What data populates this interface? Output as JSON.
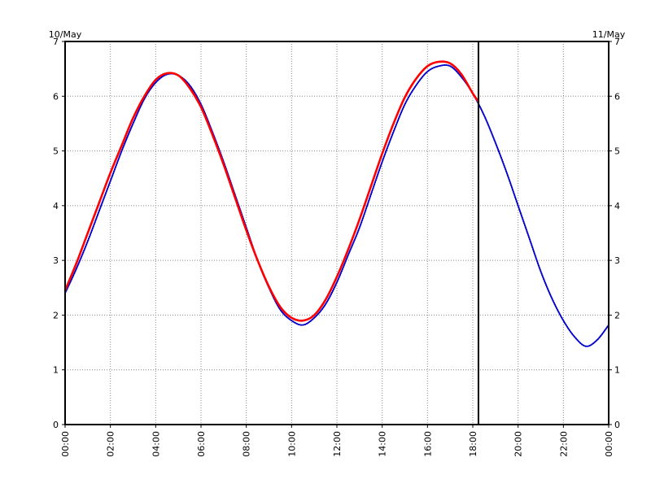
{
  "chart_data": {
    "type": "line",
    "date_labels": {
      "left": "10/May",
      "right": "11/May"
    },
    "x_ticks": [
      "00:00",
      "02:00",
      "04:00",
      "06:00",
      "08:00",
      "10:00",
      "12:00",
      "14:00",
      "16:00",
      "18:00",
      "20:00",
      "22:00",
      "00:00"
    ],
    "x_range_hours": [
      0,
      24
    ],
    "y_ticks": [
      "0",
      "1",
      "2",
      "3",
      "4",
      "5",
      "6",
      "7"
    ],
    "ylim": [
      0,
      7
    ],
    "grid": true,
    "grid_style": "dotted",
    "now_marker_hour": 18.25,
    "series": [
      {
        "style": "dotted",
        "color": "#0000cc",
        "x": [
          0,
          0.5,
          1,
          1.5,
          2,
          2.5,
          3,
          3.5,
          4,
          4.5,
          5,
          5.5,
          6,
          6.5,
          7,
          7.5,
          8,
          8.5,
          9,
          9.5,
          10,
          10.5,
          11,
          11.5,
          12,
          12.5,
          13,
          13.5,
          14,
          14.5,
          15,
          15.5,
          16,
          16.5,
          17,
          17.5,
          18,
          18.5,
          19,
          19.5,
          20,
          20.5,
          21,
          21.5,
          22,
          22.5,
          23,
          23.5,
          24
        ],
        "y": [
          2.4,
          2.85,
          3.35,
          3.9,
          4.45,
          5.0,
          5.5,
          5.95,
          6.25,
          6.4,
          6.38,
          6.2,
          5.85,
          5.35,
          4.8,
          4.2,
          3.6,
          3.0,
          2.5,
          2.1,
          1.9,
          1.82,
          1.95,
          2.2,
          2.6,
          3.1,
          3.6,
          4.2,
          4.8,
          5.35,
          5.85,
          6.2,
          6.45,
          6.55,
          6.55,
          6.35,
          6.05,
          5.65,
          5.15,
          4.6,
          4.0,
          3.4,
          2.8,
          2.3,
          1.9,
          1.6,
          1.43,
          1.55,
          1.82
        ]
      },
      {
        "style": "solid",
        "color": "#ff0000",
        "x": [
          0,
          0.5,
          1,
          1.5,
          2,
          2.5,
          3,
          3.5,
          4,
          4.5,
          5,
          5.5,
          6,
          6.5,
          7,
          7.5,
          8,
          8.5,
          9,
          9.5,
          10,
          10.5,
          11,
          11.5,
          12,
          12.5,
          13,
          13.5,
          14,
          14.5,
          15,
          15.5,
          16,
          16.5,
          17,
          17.5,
          18,
          18.25
        ],
        "y": [
          2.45,
          2.95,
          3.5,
          4.05,
          4.6,
          5.1,
          5.6,
          6.0,
          6.3,
          6.42,
          6.38,
          6.15,
          5.8,
          5.3,
          4.75,
          4.15,
          3.55,
          3.0,
          2.52,
          2.15,
          1.95,
          1.9,
          2.0,
          2.28,
          2.7,
          3.2,
          3.75,
          4.35,
          4.95,
          5.5,
          5.98,
          6.32,
          6.55,
          6.63,
          6.6,
          6.4,
          6.05,
          5.9
        ]
      }
    ]
  }
}
